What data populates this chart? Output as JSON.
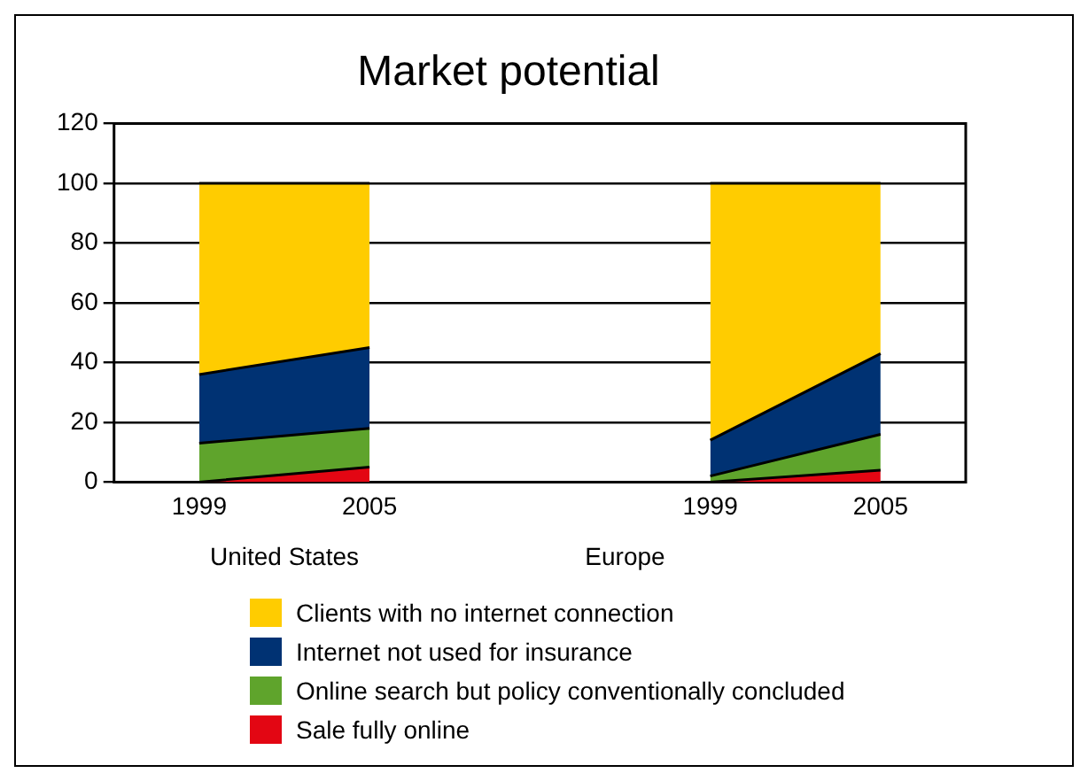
{
  "chart_data": {
    "type": "area",
    "title": "Market potential",
    "stacked": true,
    "categories": [
      "1999",
      "2005",
      null,
      "1999",
      "2005"
    ],
    "series": [
      {
        "name": "Sale fully online",
        "color": "#e30613",
        "values": [
          0,
          5,
          null,
          0,
          4
        ]
      },
      {
        "name": "Online search but policy conventionally concluded",
        "color": "#5fa42c",
        "values": [
          13,
          13,
          null,
          2,
          12
        ]
      },
      {
        "name": "Internet not used for insurance",
        "color": "#003273",
        "values": [
          23,
          27,
          null,
          12,
          27
        ]
      },
      {
        "name": "Clients with no internet connection",
        "color": "#ffcc00",
        "values": [
          64,
          55,
          null,
          86,
          57
        ]
      }
    ],
    "annotations": [
      "United States",
      "Europe"
    ],
    "ylim": [
      0,
      120
    ],
    "yticks": [
      0,
      20,
      40,
      60,
      80,
      100,
      120
    ],
    "grid": "y",
    "legend": "bottom"
  }
}
